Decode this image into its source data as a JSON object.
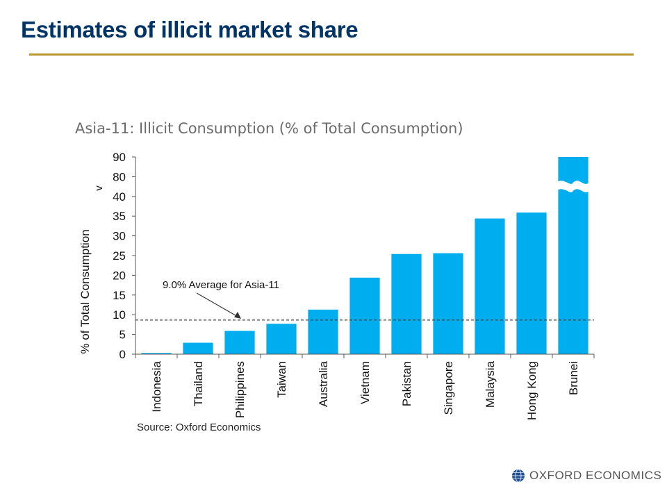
{
  "slide": {
    "title": "Estimates of illicit market share",
    "colors": {
      "title": "#003366",
      "rule": "#B8982E",
      "bar": "#00AEEF"
    }
  },
  "chart_data": {
    "type": "bar",
    "title": "Asia-11: Illicit Consumption (% of Total Consumption)",
    "ylabel": "% of Total Consumption",
    "xlabel": "",
    "categories": [
      "Indonesia",
      "Thailand",
      "Philippines",
      "Taiwan",
      "Australia",
      "Vietnam",
      "Pakistan",
      "Singapore",
      "Malaysia",
      "Hong Kong",
      "Brunei"
    ],
    "values": [
      0.3,
      2.9,
      5.9,
      7.7,
      11.3,
      19.4,
      25.4,
      25.6,
      34.4,
      35.9,
      90
    ],
    "ylim": [
      0,
      90
    ],
    "y_ticks": [
      "0",
      "5",
      "10",
      "15",
      "20",
      "25",
      "30",
      "35",
      "40",
      "80",
      "90"
    ],
    "axis_break": {
      "symbol": "v",
      "between": [
        40,
        80
      ]
    },
    "reference_line": {
      "value": 9.0,
      "label": "9.0% Average for Asia-11",
      "style": "dashed"
    },
    "grid": false,
    "source": "Source: Oxford Economics"
  },
  "logo": {
    "text": "OXFORD ECONOMICS",
    "icon": "globe-icon"
  }
}
